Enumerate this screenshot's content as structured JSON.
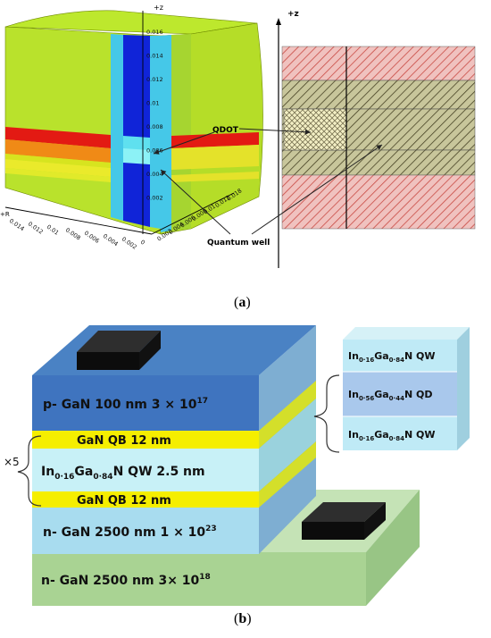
{
  "panel_a": {
    "caption_open": "(",
    "caption_letter": "a",
    "caption_close": ")",
    "axis_z_label_left": "+z",
    "axis_r_label": "+R",
    "axis_z_label_right": "+z",
    "z_ticks": [
      "0.016",
      "0.014",
      "0.012",
      "0.01",
      "0.008",
      "0.006",
      "0.004",
      "0.002"
    ],
    "r_ticks_left": [
      "0.014",
      "0.012",
      "0.01",
      "0.008",
      "0.006",
      "0.004",
      "0.002",
      "0"
    ],
    "r_ticks_right": [
      "0.002",
      "0.004",
      "0.006",
      "0.008",
      "0.01",
      "0.012",
      "0.018"
    ],
    "label_qdot": "QDOT",
    "label_qwell": "Quantum well"
  },
  "panel_b": {
    "caption_open": "(",
    "caption_letter": "b",
    "caption_close": ")",
    "multiplier": "×5",
    "layers": {
      "p_gan": "p- GaN  100 nm 3 × 10",
      "p_gan_exp": "17",
      "qb_top": "GaN  QB 12 nm",
      "qw_in": "In",
      "qw_in_sub": "0·16",
      "qw_ga": "Ga",
      "qw_ga_sub": "0·84",
      "qw_rest": "N  QW  2.5 nm",
      "qb_bottom": "GaN  QB 12 nm",
      "n_gan_upper": "n- GaN  2500 nm  1 × 10",
      "n_gan_upper_exp": "23",
      "n_gan_lower": "n- GaN  2500 nm 3× 10",
      "n_gan_lower_exp": "18"
    },
    "inset": {
      "top_in_sub": "0·16",
      "top_ga_sub": "0·84",
      "top_suffix": "N  QW",
      "mid_in_sub": "0·56",
      "mid_ga_sub": "0·44",
      "mid_suffix": "N  QD",
      "bot_in_sub": "0·16",
      "bot_ga_sub": "0·84",
      "bot_suffix": "N  QW",
      "in": "In",
      "ga": "Ga"
    }
  }
}
